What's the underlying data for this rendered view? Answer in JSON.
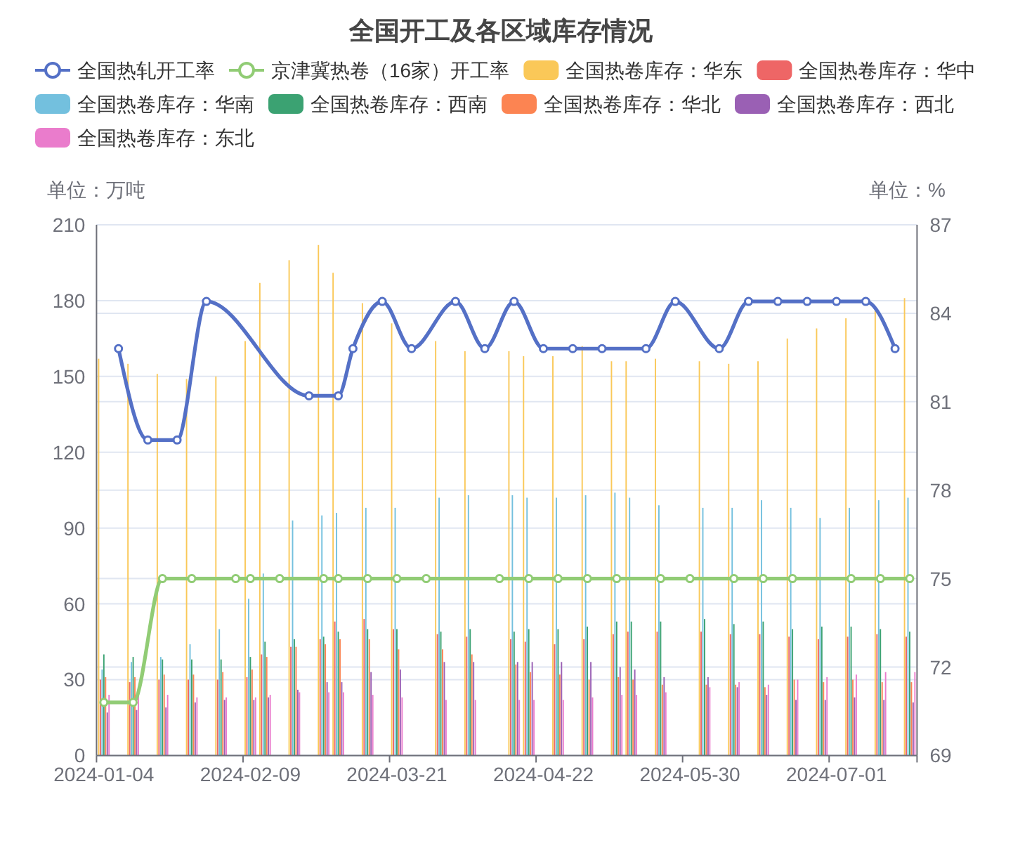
{
  "chart_data": {
    "type": "bar",
    "title": "全国开工及各区域库存情况",
    "ylabel": "单位：万吨",
    "y2label": "单位：%",
    "categories": [
      "2024-01-04",
      null,
      null,
      null,
      null,
      null,
      null,
      null,
      null,
      null,
      "2024-02-09",
      null,
      null,
      null,
      null,
      null,
      null,
      null,
      null,
      null,
      "2024-03-21",
      null,
      null,
      null,
      null,
      null,
      null,
      null,
      null,
      null,
      "2024-04-22",
      null,
      null,
      null,
      null,
      null,
      null,
      null,
      null,
      null,
      "2024-05-30",
      null,
      null,
      null,
      null,
      null,
      null,
      null,
      null,
      null,
      "2024-07-01",
      null,
      null,
      null,
      null,
      null
    ],
    "series": [
      {
        "name": "全国热轧开工率",
        "type": "line",
        "axis": "y2",
        "color": "#5470c6",
        "marker": "circle",
        "values": [
          null,
          82.8,
          null,
          79.7,
          null,
          79.7,
          null,
          84.4,
          null,
          null,
          null,
          null,
          null,
          null,
          81.2,
          null,
          81.2,
          82.8,
          null,
          84.4,
          null,
          82.8,
          null,
          null,
          84.4,
          null,
          82.8,
          null,
          84.4,
          null,
          82.8,
          null,
          82.8,
          null,
          82.8,
          null,
          null,
          82.8,
          null,
          84.4,
          null,
          null,
          82.8,
          null,
          84.4,
          null,
          84.4,
          null,
          84.4,
          null,
          84.4,
          null,
          84.4,
          null,
          82.8,
          null
        ]
      },
      {
        "name": "京津冀热卷（16家）开工率",
        "type": "line",
        "axis": "y2",
        "color": "#91cc75",
        "marker": "circle",
        "values": [
          70.8,
          null,
          70.8,
          null,
          75,
          null,
          75,
          null,
          null,
          75,
          75,
          null,
          75,
          null,
          null,
          75,
          75,
          null,
          75,
          null,
          75,
          null,
          75,
          null,
          null,
          null,
          null,
          75,
          null,
          75,
          null,
          75,
          null,
          75,
          null,
          75,
          null,
          null,
          75,
          null,
          75,
          null,
          null,
          75,
          null,
          75,
          null,
          75,
          null,
          null,
          null,
          75,
          null,
          75,
          null,
          75
        ]
      },
      {
        "name": "全国热卷库存：华东",
        "color": "#fac858",
        "values": [
          157,
          null,
          155,
          null,
          151,
          null,
          149,
          null,
          150,
          null,
          164,
          187,
          null,
          196,
          null,
          202,
          191,
          null,
          179,
          null,
          171,
          null,
          null,
          164,
          null,
          160,
          null,
          null,
          160,
          158,
          null,
          158,
          null,
          162,
          null,
          156,
          156,
          null,
          157,
          null,
          null,
          156,
          null,
          155,
          null,
          156,
          null,
          165,
          null,
          169,
          null,
          173,
          null,
          176,
          null,
          181
        ]
      },
      {
        "name": "全国热卷库存：华中",
        "color": "#ee6666",
        "values": [
          30,
          null,
          29,
          null,
          30,
          null,
          30,
          null,
          30,
          null,
          31,
          40,
          null,
          43,
          null,
          46,
          53,
          null,
          54,
          null,
          50,
          null,
          null,
          48,
          null,
          47,
          null,
          null,
          46,
          45,
          null,
          44,
          null,
          46,
          null,
          48,
          49,
          null,
          49,
          null,
          null,
          49,
          null,
          48,
          null,
          48,
          null,
          47,
          null,
          46,
          null,
          47,
          null,
          48,
          null,
          47
        ]
      },
      {
        "name": "全国热卷库存：华南",
        "color": "#73c0de",
        "values": [
          34,
          null,
          37,
          null,
          39,
          null,
          44,
          null,
          50,
          null,
          62,
          72,
          null,
          93,
          null,
          95,
          96,
          null,
          98,
          null,
          98,
          null,
          null,
          102,
          null,
          103,
          null,
          null,
          103,
          102,
          null,
          102,
          null,
          103,
          null,
          104,
          102,
          null,
          99,
          null,
          null,
          98,
          null,
          98,
          null,
          101,
          null,
          98,
          null,
          94,
          null,
          98,
          null,
          101,
          null,
          102
        ]
      },
      {
        "name": "全国热卷库存：西南",
        "color": "#3ba272",
        "values": [
          40,
          null,
          39,
          null,
          38,
          null,
          38,
          null,
          38,
          null,
          39,
          45,
          null,
          46,
          null,
          47,
          49,
          null,
          50,
          null,
          50,
          null,
          null,
          49,
          null,
          50,
          null,
          null,
          49,
          50,
          null,
          50,
          null,
          51,
          null,
          53,
          53,
          null,
          53,
          null,
          null,
          54,
          null,
          52,
          null,
          53,
          null,
          50,
          null,
          51,
          null,
          51,
          null,
          50,
          null,
          49
        ]
      },
      {
        "name": "全国热卷库存：华北",
        "color": "#fc8452",
        "values": [
          31,
          null,
          31,
          null,
          32,
          null,
          32,
          null,
          33,
          null,
          34,
          39,
          null,
          43,
          null,
          44,
          46,
          null,
          46,
          null,
          42,
          null,
          null,
          42,
          null,
          40,
          null,
          null,
          36,
          33,
          null,
          32,
          null,
          30,
          null,
          31,
          30,
          null,
          28,
          null,
          null,
          28,
          null,
          28,
          null,
          27,
          null,
          30,
          null,
          29,
          null,
          30,
          null,
          29,
          null,
          29
        ]
      },
      {
        "name": "全国热卷库存：西北",
        "color": "#9a60b4",
        "values": [
          17,
          null,
          18,
          null,
          19,
          null,
          21,
          null,
          22,
          null,
          22,
          23,
          null,
          26,
          null,
          29,
          29,
          null,
          33,
          null,
          34,
          null,
          null,
          37,
          null,
          37,
          null,
          null,
          37,
          37,
          null,
          37,
          null,
          37,
          null,
          35,
          34,
          null,
          31,
          null,
          null,
          31,
          null,
          27,
          null,
          24,
          null,
          22,
          null,
          22,
          null,
          23,
          null,
          22,
          null,
          21
        ]
      },
      {
        "name": "全国热卷库存：东北",
        "color": "#ea7ccc",
        "values": [
          24,
          null,
          24,
          null,
          24,
          null,
          23,
          null,
          23,
          null,
          23,
          24,
          null,
          25,
          null,
          25,
          25,
          null,
          24,
          null,
          23,
          null,
          null,
          22,
          null,
          22,
          null,
          null,
          22,
          22,
          null,
          22,
          null,
          23,
          null,
          24,
          24,
          null,
          25,
          null,
          null,
          27,
          null,
          29,
          null,
          28,
          null,
          30,
          null,
          31,
          null,
          32,
          null,
          33,
          null,
          33
        ]
      }
    ],
    "ylim": [
      0,
      210
    ],
    "yticks": [
      0,
      30,
      60,
      90,
      120,
      150,
      180,
      210
    ],
    "y2lim": [
      69,
      87
    ],
    "y2ticks": [
      69,
      72,
      75,
      78,
      81,
      84,
      87
    ],
    "grid": "y",
    "legend": "top"
  }
}
